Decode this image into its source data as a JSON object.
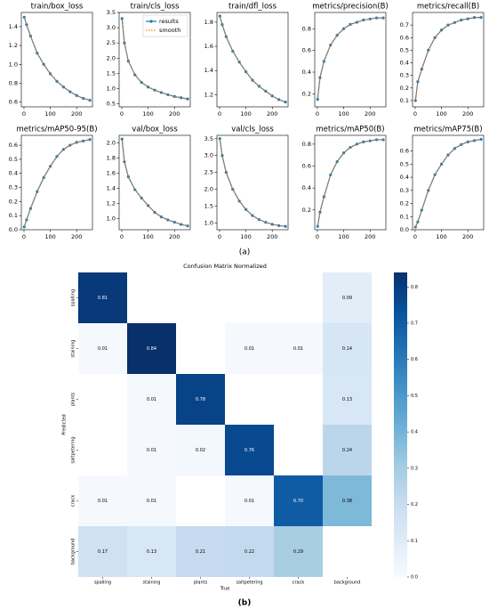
{
  "captions": [
    "(a)",
    "(b)"
  ],
  "chart_data": [
    {
      "type": "line",
      "title": "train/box_loss",
      "x": [
        1,
        10,
        25,
        50,
        75,
        100,
        125,
        150,
        175,
        200,
        225,
        250
      ],
      "xlim": [
        -10,
        260
      ],
      "xticks": [
        0,
        100,
        200
      ],
      "ylim": [
        0.55,
        1.55
      ],
      "yticks": [
        0.6,
        0.8,
        {
          "value": 1,
          "label": "1.0"
        },
        1.2,
        1.4
      ],
      "series": [
        {
          "name": "results",
          "color": "#1f77b4",
          "style": "solid",
          "marker": "o",
          "values": [
            1.5,
            1.42,
            1.3,
            1.12,
            1.0,
            0.9,
            0.82,
            0.76,
            0.71,
            0.67,
            0.64,
            0.62
          ]
        },
        {
          "name": "smooth",
          "color": "#ff7f0e",
          "style": "dotted",
          "values": [
            1.5,
            1.42,
            1.3,
            1.12,
            1.0,
            0.9,
            0.82,
            0.76,
            0.71,
            0.67,
            0.64,
            0.62
          ]
        }
      ]
    },
    {
      "type": "line",
      "title": "train/cls_loss",
      "x": [
        1,
        10,
        25,
        50,
        75,
        100,
        125,
        150,
        175,
        200,
        225,
        250
      ],
      "xlim": [
        -10,
        260
      ],
      "xticks": [
        0,
        100,
        200
      ],
      "ylim": [
        0.4,
        3.5
      ],
      "yticks": [
        0.5,
        {
          "value": 1,
          "label": "1.0"
        },
        1.5,
        {
          "value": 2,
          "label": "2.0"
        },
        2.5,
        {
          "value": 3,
          "label": "3.0"
        },
        3.5
      ],
      "legend": "upper right",
      "series": [
        {
          "name": "results",
          "color": "#1f77b4",
          "style": "solid",
          "marker": "o",
          "values": [
            3.3,
            2.5,
            1.9,
            1.45,
            1.2,
            1.05,
            0.95,
            0.87,
            0.8,
            0.74,
            0.7,
            0.66
          ]
        },
        {
          "name": "smooth",
          "color": "#ff7f0e",
          "style": "dotted",
          "values": [
            3.3,
            2.5,
            1.9,
            1.45,
            1.2,
            1.05,
            0.95,
            0.87,
            0.8,
            0.74,
            0.7,
            0.66
          ]
        }
      ]
    },
    {
      "type": "line",
      "title": "train/dfl_loss",
      "x": [
        1,
        10,
        25,
        50,
        75,
        100,
        125,
        150,
        175,
        200,
        225,
        250
      ],
      "xlim": [
        -10,
        260
      ],
      "xticks": [
        0,
        100,
        200
      ],
      "ylim": [
        1.1,
        1.88
      ],
      "yticks": [
        1.2,
        1.4,
        1.6,
        1.8
      ],
      "series": [
        {
          "name": "results",
          "color": "#1f77b4",
          "style": "solid",
          "marker": "o",
          "values": [
            1.85,
            1.78,
            1.68,
            1.56,
            1.47,
            1.39,
            1.32,
            1.27,
            1.23,
            1.19,
            1.16,
            1.14
          ]
        },
        {
          "name": "smooth",
          "color": "#ff7f0e",
          "style": "dotted",
          "values": [
            1.85,
            1.78,
            1.68,
            1.56,
            1.47,
            1.39,
            1.32,
            1.27,
            1.23,
            1.19,
            1.16,
            1.14
          ]
        }
      ]
    },
    {
      "type": "line",
      "title": "metrics/precision(B)",
      "x": [
        1,
        10,
        25,
        50,
        75,
        100,
        125,
        150,
        175,
        200,
        225,
        250
      ],
      "xlim": [
        -10,
        260
      ],
      "xticks": [
        0,
        100,
        200
      ],
      "ylim": [
        0.08,
        0.95
      ],
      "yticks": [
        0.2,
        0.4,
        0.6,
        0.8
      ],
      "series": [
        {
          "name": "results",
          "color": "#1f77b4",
          "style": "solid",
          "marker": "o",
          "values": [
            0.15,
            0.35,
            0.5,
            0.65,
            0.74,
            0.8,
            0.84,
            0.86,
            0.88,
            0.89,
            0.9,
            0.9
          ]
        },
        {
          "name": "smooth",
          "color": "#ff7f0e",
          "style": "dotted",
          "values": [
            0.15,
            0.35,
            0.5,
            0.65,
            0.74,
            0.8,
            0.84,
            0.86,
            0.88,
            0.89,
            0.9,
            0.9
          ]
        }
      ]
    },
    {
      "type": "line",
      "title": "metrics/recall(B)",
      "x": [
        1,
        10,
        25,
        50,
        75,
        100,
        125,
        150,
        175,
        200,
        225,
        250
      ],
      "xlim": [
        -10,
        260
      ],
      "xticks": [
        0,
        100,
        200
      ],
      "ylim": [
        0.05,
        0.8
      ],
      "yticks": [
        0.1,
        0.2,
        0.3,
        0.4,
        0.5,
        0.6,
        0.7
      ],
      "series": [
        {
          "name": "results",
          "color": "#1f77b4",
          "style": "solid",
          "marker": "o",
          "values": [
            0.1,
            0.25,
            0.35,
            0.5,
            0.6,
            0.66,
            0.7,
            0.72,
            0.74,
            0.75,
            0.76,
            0.76
          ]
        },
        {
          "name": "smooth",
          "color": "#ff7f0e",
          "style": "dotted",
          "values": [
            0.1,
            0.25,
            0.35,
            0.5,
            0.6,
            0.66,
            0.7,
            0.72,
            0.74,
            0.75,
            0.76,
            0.76
          ]
        }
      ]
    },
    {
      "type": "line",
      "title": "metrics/mAP50-95(B)",
      "x": [
        1,
        10,
        25,
        50,
        75,
        100,
        125,
        150,
        175,
        200,
        225,
        250
      ],
      "xlim": [
        -10,
        260
      ],
      "xticks": [
        0,
        100,
        200
      ],
      "ylim": [
        0,
        0.67
      ],
      "yticks": [
        {
          "value": 0,
          "label": "0.0"
        },
        0.1,
        0.2,
        0.3,
        0.4,
        0.5,
        0.6
      ],
      "series": [
        {
          "name": "results",
          "color": "#1f77b4",
          "style": "solid",
          "marker": "o",
          "values": [
            0.02,
            0.07,
            0.15,
            0.27,
            0.37,
            0.45,
            0.52,
            0.57,
            0.6,
            0.62,
            0.63,
            0.64
          ]
        },
        {
          "name": "smooth",
          "color": "#ff7f0e",
          "style": "dotted",
          "values": [
            0.02,
            0.07,
            0.15,
            0.27,
            0.37,
            0.45,
            0.52,
            0.57,
            0.6,
            0.62,
            0.63,
            0.64
          ]
        }
      ]
    },
    {
      "type": "line",
      "title": "val/box_loss",
      "x": [
        1,
        10,
        25,
        50,
        75,
        100,
        125,
        150,
        175,
        200,
        225,
        250
      ],
      "xlim": [
        -10,
        260
      ],
      "xticks": [
        0,
        100,
        200
      ],
      "ylim": [
        0.85,
        2.1
      ],
      "yticks": [
        {
          "value": 1,
          "label": "1.0"
        },
        1.2,
        1.4,
        1.6,
        1.8,
        {
          "value": 2,
          "label": "2.0"
        }
      ],
      "series": [
        {
          "name": "results",
          "color": "#1f77b4",
          "style": "solid",
          "marker": "o",
          "values": [
            2.05,
            1.75,
            1.55,
            1.38,
            1.27,
            1.17,
            1.08,
            1.02,
            0.98,
            0.95,
            0.92,
            0.9
          ]
        },
        {
          "name": "smooth",
          "color": "#ff7f0e",
          "style": "dotted",
          "values": [
            2.05,
            1.75,
            1.55,
            1.38,
            1.27,
            1.17,
            1.08,
            1.02,
            0.98,
            0.95,
            0.92,
            0.9
          ]
        }
      ]
    },
    {
      "type": "line",
      "title": "val/cls_loss",
      "x": [
        1,
        10,
        25,
        50,
        75,
        100,
        125,
        150,
        175,
        200,
        225,
        250
      ],
      "xlim": [
        -10,
        260
      ],
      "xticks": [
        0,
        100,
        200
      ],
      "ylim": [
        0.8,
        3.6
      ],
      "yticks": [
        {
          "value": 1,
          "label": "1.0"
        },
        1.5,
        {
          "value": 2,
          "label": "2.0"
        },
        2.5,
        {
          "value": 3,
          "label": "3.0"
        },
        3.5
      ],
      "series": [
        {
          "name": "results",
          "color": "#1f77b4",
          "style": "solid",
          "marker": "o",
          "values": [
            3.5,
            3.0,
            2.5,
            2.0,
            1.65,
            1.4,
            1.22,
            1.1,
            1.02,
            0.96,
            0.92,
            0.9
          ]
        },
        {
          "name": "smooth",
          "color": "#ff7f0e",
          "style": "dotted",
          "values": [
            3.5,
            3.0,
            2.5,
            2.0,
            1.65,
            1.4,
            1.22,
            1.1,
            1.02,
            0.96,
            0.92,
            0.9
          ]
        }
      ]
    },
    {
      "type": "line",
      "title": "metrics/mAP50(B)",
      "x": [
        1,
        10,
        25,
        50,
        75,
        100,
        125,
        150,
        175,
        200,
        225,
        250
      ],
      "xlim": [
        -10,
        260
      ],
      "xticks": [
        0,
        100,
        200
      ],
      "ylim": [
        0.02,
        0.88
      ],
      "yticks": [
        0.2,
        0.4,
        0.6,
        0.8
      ],
      "series": [
        {
          "name": "results",
          "color": "#1f77b4",
          "style": "solid",
          "marker": "o",
          "values": [
            0.05,
            0.18,
            0.32,
            0.52,
            0.64,
            0.72,
            0.77,
            0.8,
            0.82,
            0.83,
            0.84,
            0.84
          ]
        },
        {
          "name": "smooth",
          "color": "#ff7f0e",
          "style": "dotted",
          "values": [
            0.05,
            0.18,
            0.32,
            0.52,
            0.64,
            0.72,
            0.77,
            0.8,
            0.82,
            0.83,
            0.84,
            0.84
          ]
        }
      ]
    },
    {
      "type": "line",
      "title": "metrics/mAP75(B)",
      "x": [
        1,
        10,
        25,
        50,
        75,
        100,
        125,
        150,
        175,
        200,
        225,
        250
      ],
      "xlim": [
        -10,
        260
      ],
      "xticks": [
        0,
        100,
        200
      ],
      "ylim": [
        0,
        0.72
      ],
      "yticks": [
        {
          "value": 0,
          "label": "0.0"
        },
        0.1,
        0.2,
        0.3,
        0.4,
        0.5,
        0.6
      ],
      "series": [
        {
          "name": "results",
          "color": "#1f77b4",
          "style": "solid",
          "marker": "o",
          "values": [
            0.02,
            0.06,
            0.15,
            0.3,
            0.42,
            0.5,
            0.57,
            0.62,
            0.65,
            0.67,
            0.68,
            0.69
          ]
        },
        {
          "name": "smooth",
          "color": "#ff7f0e",
          "style": "dotted",
          "values": [
            0.02,
            0.06,
            0.15,
            0.3,
            0.42,
            0.5,
            0.57,
            0.62,
            0.65,
            0.67,
            0.68,
            0.69
          ]
        }
      ]
    },
    {
      "type": "heatmap",
      "title": "Confusion Matrix Normalized",
      "xlabel": "True",
      "ylabel": "Predicted",
      "x_categories": [
        "spalling",
        "staining",
        "plants",
        "saltpetering",
        "crack",
        "background"
      ],
      "y_categories": [
        "spalling",
        "staining",
        "plants",
        "saltpetering",
        "crack",
        "background"
      ],
      "values": [
        [
          0.81,
          null,
          null,
          null,
          null,
          0.09
        ],
        [
          0.01,
          0.84,
          null,
          0.01,
          0.01,
          0.14
        ],
        [
          null,
          0.01,
          0.78,
          null,
          null,
          0.13
        ],
        [
          null,
          0.01,
          0.02,
          0.76,
          null,
          0.24
        ],
        [
          0.01,
          0.01,
          null,
          0.01,
          0.7,
          0.38
        ],
        [
          0.17,
          0.13,
          0.21,
          0.22,
          0.29,
          null
        ]
      ],
      "value_labels": [
        [
          null,
          null,
          null,
          null,
          null,
          null
        ],
        [
          null,
          null,
          null,
          null,
          null,
          null
        ],
        [
          null,
          null,
          null,
          null,
          null,
          null
        ],
        [
          null,
          null,
          null,
          null,
          null,
          null
        ],
        [
          null,
          null,
          null,
          null,
          "0.70",
          null
        ],
        [
          null,
          null,
          null,
          null,
          null,
          null
        ]
      ],
      "colormap": "Blues",
      "clim": [
        0,
        0.84
      ],
      "cticks": [
        {
          "value": 0,
          "label": "0.0"
        },
        0.1,
        0.2,
        0.3,
        0.4,
        0.5,
        0.6,
        0.7,
        0.8
      ]
    }
  ]
}
